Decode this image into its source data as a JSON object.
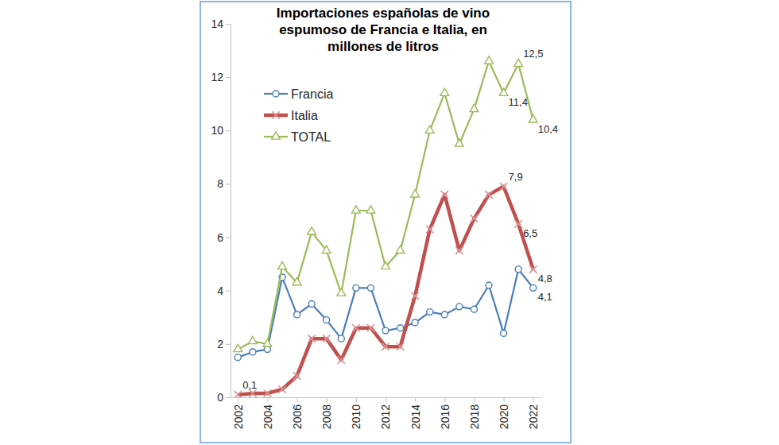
{
  "chart_data": {
    "type": "line",
    "title": "Importaciones españolas de vino espumoso de Francia e Italia, en millones de litros",
    "x": [
      2002,
      2003,
      2004,
      2005,
      2006,
      2007,
      2008,
      2009,
      2010,
      2011,
      2012,
      2013,
      2014,
      2015,
      2016,
      2017,
      2018,
      2019,
      2020,
      2021,
      2022
    ],
    "xlim": [
      2001.5,
      2022.5
    ],
    "xticks": [
      2002,
      2004,
      2006,
      2008,
      2010,
      2012,
      2014,
      2016,
      2018,
      2020,
      2022
    ],
    "ylim": [
      0,
      14
    ],
    "yticks": [
      0,
      2,
      4,
      6,
      8,
      10,
      12,
      14
    ],
    "grid": false,
    "legend": "upper left",
    "series": [
      {
        "name": "Francia",
        "color": "#4a7ebb",
        "marker": "circle",
        "values": [
          1.5,
          1.7,
          1.8,
          4.5,
          3.1,
          3.5,
          2.9,
          2.2,
          4.1,
          4.1,
          2.5,
          2.6,
          2.8,
          3.2,
          3.1,
          3.4,
          3.3,
          4.2,
          2.4,
          4.8,
          4.1
        ],
        "value_labels": [
          null,
          null,
          null,
          null,
          null,
          null,
          null,
          null,
          null,
          null,
          null,
          null,
          null,
          null,
          null,
          null,
          null,
          null,
          null,
          null,
          "4,1"
        ]
      },
      {
        "name": "Italia",
        "color": "#c0504d",
        "marker": "x",
        "values": [
          0.1,
          0.15,
          0.15,
          0.3,
          0.8,
          2.2,
          2.2,
          1.4,
          2.6,
          2.6,
          1.9,
          1.9,
          3.8,
          6.3,
          7.6,
          5.5,
          6.7,
          7.6,
          7.9,
          6.5,
          4.8
        ],
        "value_labels": [
          "0,1",
          null,
          null,
          null,
          null,
          null,
          null,
          null,
          null,
          null,
          null,
          null,
          null,
          null,
          null,
          null,
          null,
          null,
          "7,9",
          "6,5",
          "4,8"
        ]
      },
      {
        "name": "TOTAL",
        "color": "#9bbb59",
        "marker": "triangle",
        "values": [
          1.8,
          2.1,
          2.0,
          4.9,
          4.3,
          6.2,
          5.5,
          3.9,
          7.0,
          7.0,
          4.9,
          5.5,
          7.6,
          10.0,
          11.4,
          9.5,
          10.8,
          12.6,
          11.4,
          12.5,
          10.4
        ],
        "value_labels": [
          null,
          null,
          null,
          null,
          null,
          null,
          null,
          null,
          null,
          null,
          null,
          null,
          null,
          null,
          null,
          null,
          null,
          null,
          "11,4",
          "12,5",
          "10,4"
        ]
      }
    ]
  }
}
